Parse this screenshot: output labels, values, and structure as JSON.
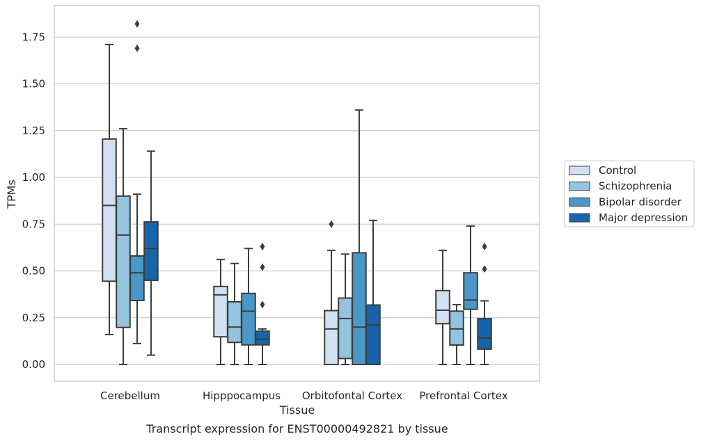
{
  "caption": "Transcript expression for ENST00000492821 by tissue",
  "chart_data": {
    "type": "boxplot",
    "xlabel": "Tissue",
    "ylabel": "TPMs",
    "ylim": [
      -0.09,
      1.93
    ],
    "yticks": [
      "0.00",
      "0.25",
      "0.50",
      "0.75",
      "1.00",
      "1.25",
      "1.50",
      "1.75"
    ],
    "grid": "horizontal",
    "legend_position": "right, outside plot",
    "categories": [
      "Cerebellum",
      "Hipppocampus",
      "Orbitofontal Cortex",
      "Prefrontal Cortex"
    ],
    "series": [
      {
        "name": "Control",
        "color": "#d0e1f2",
        "boxes": [
          {
            "whislo": 0.16,
            "q1": 0.445,
            "med": 0.85,
            "q3": 1.205,
            "whishi": 1.71,
            "fliers": []
          },
          {
            "whislo": 0.0,
            "q1": 0.148,
            "med": 0.372,
            "q3": 0.417,
            "whishi": 0.561,
            "fliers": []
          },
          {
            "whislo": 0.0,
            "q1": 0.0,
            "med": 0.19,
            "q3": 0.288,
            "whishi": 0.61,
            "fliers": [
              0.75
            ]
          },
          {
            "whislo": 0.0,
            "q1": 0.218,
            "med": 0.29,
            "q3": 0.395,
            "whishi": 0.61,
            "fliers": []
          }
        ]
      },
      {
        "name": "Schizophrenia",
        "color": "#94c4df",
        "boxes": [
          {
            "whislo": 0.0,
            "q1": 0.198,
            "med": 0.692,
            "q3": 0.9,
            "whishi": 1.26,
            "fliers": []
          },
          {
            "whislo": 0.0,
            "q1": 0.118,
            "med": 0.2,
            "q3": 0.335,
            "whishi": 0.54,
            "fliers": []
          },
          {
            "whislo": 0.0,
            "q1": 0.032,
            "med": 0.246,
            "q3": 0.355,
            "whishi": 0.59,
            "fliers": []
          },
          {
            "whislo": 0.0,
            "q1": 0.104,
            "med": 0.19,
            "q3": 0.285,
            "whishi": 0.32,
            "fliers": []
          }
        ]
      },
      {
        "name": "Bipolar disorder",
        "color": "#4a98c9",
        "boxes": [
          {
            "whislo": 0.112,
            "q1": 0.342,
            "med": 0.49,
            "q3": 0.58,
            "whishi": 0.91,
            "fliers": [
              1.69,
              1.82
            ]
          },
          {
            "whislo": 0.0,
            "q1": 0.105,
            "med": 0.285,
            "q3": 0.38,
            "whishi": 0.62,
            "fliers": []
          },
          {
            "whislo": 0.0,
            "q1": 0.0,
            "med": 0.2,
            "q3": 0.597,
            "whishi": 1.36,
            "fliers": []
          },
          {
            "whislo": 0.0,
            "q1": 0.295,
            "med": 0.345,
            "q3": 0.49,
            "whishi": 0.74,
            "fliers": []
          }
        ]
      },
      {
        "name": "Major depression",
        "color": "#1764ab",
        "boxes": [
          {
            "whislo": 0.05,
            "q1": 0.45,
            "med": 0.62,
            "q3": 0.762,
            "whishi": 1.14,
            "fliers": []
          },
          {
            "whislo": 0.0,
            "q1": 0.105,
            "med": 0.135,
            "q3": 0.178,
            "whishi": 0.19,
            "fliers": [
              0.32,
              0.52,
              0.63
            ]
          },
          {
            "whislo": 0.0,
            "q1": 0.0,
            "med": 0.212,
            "q3": 0.318,
            "whishi": 0.77,
            "fliers": []
          },
          {
            "whislo": 0.0,
            "q1": 0.082,
            "med": 0.142,
            "q3": 0.245,
            "whishi": 0.34,
            "fliers": [
              0.51,
              0.63
            ]
          }
        ]
      }
    ]
  }
}
